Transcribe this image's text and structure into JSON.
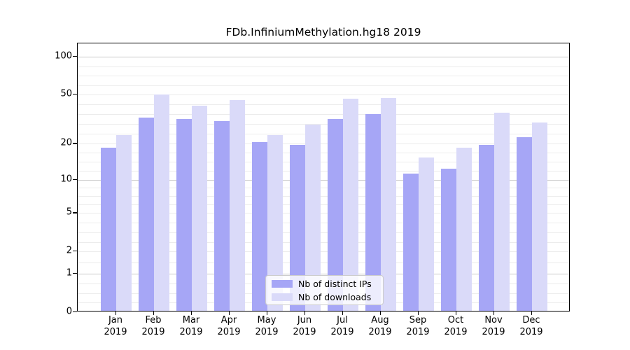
{
  "figure": {
    "title": "FDb.InfiniumMethylation.hg18 2019"
  },
  "chart_data": {
    "type": "bar",
    "title": "FDb.InfiniumMethylation.hg18 2019",
    "categories": [
      "Jan 2019",
      "Feb 2019",
      "Mar 2019",
      "Apr 2019",
      "May 2019",
      "Jun 2019",
      "Jul 2019",
      "Aug 2019",
      "Sep 2019",
      "Oct 2019",
      "Nov 2019",
      "Dec 2019"
    ],
    "series": [
      {
        "name": "Nb of distinct IPs",
        "color": "#a6a6f6",
        "values": [
          18,
          32,
          31,
          30,
          20,
          19,
          31,
          34,
          11,
          12,
          19,
          22
        ]
      },
      {
        "name": "Nb of downloads",
        "color": "#dadaf9",
        "values": [
          23,
          49,
          40,
          44,
          23,
          28,
          45,
          46,
          15,
          18,
          35,
          29
        ]
      }
    ],
    "xlabel": "",
    "ylabel": "",
    "yscale": "log-like (position = log10(1+y))",
    "yticks": [
      0,
      1,
      2,
      5,
      10,
      20,
      50,
      100
    ],
    "major_gridline_values": [
      1,
      10,
      100
    ],
    "ylim": [
      0,
      129
    ],
    "grid": true,
    "legend": {
      "position": "lower center",
      "entries": [
        "Nb of distinct IPs",
        "Nb of downloads"
      ]
    }
  }
}
